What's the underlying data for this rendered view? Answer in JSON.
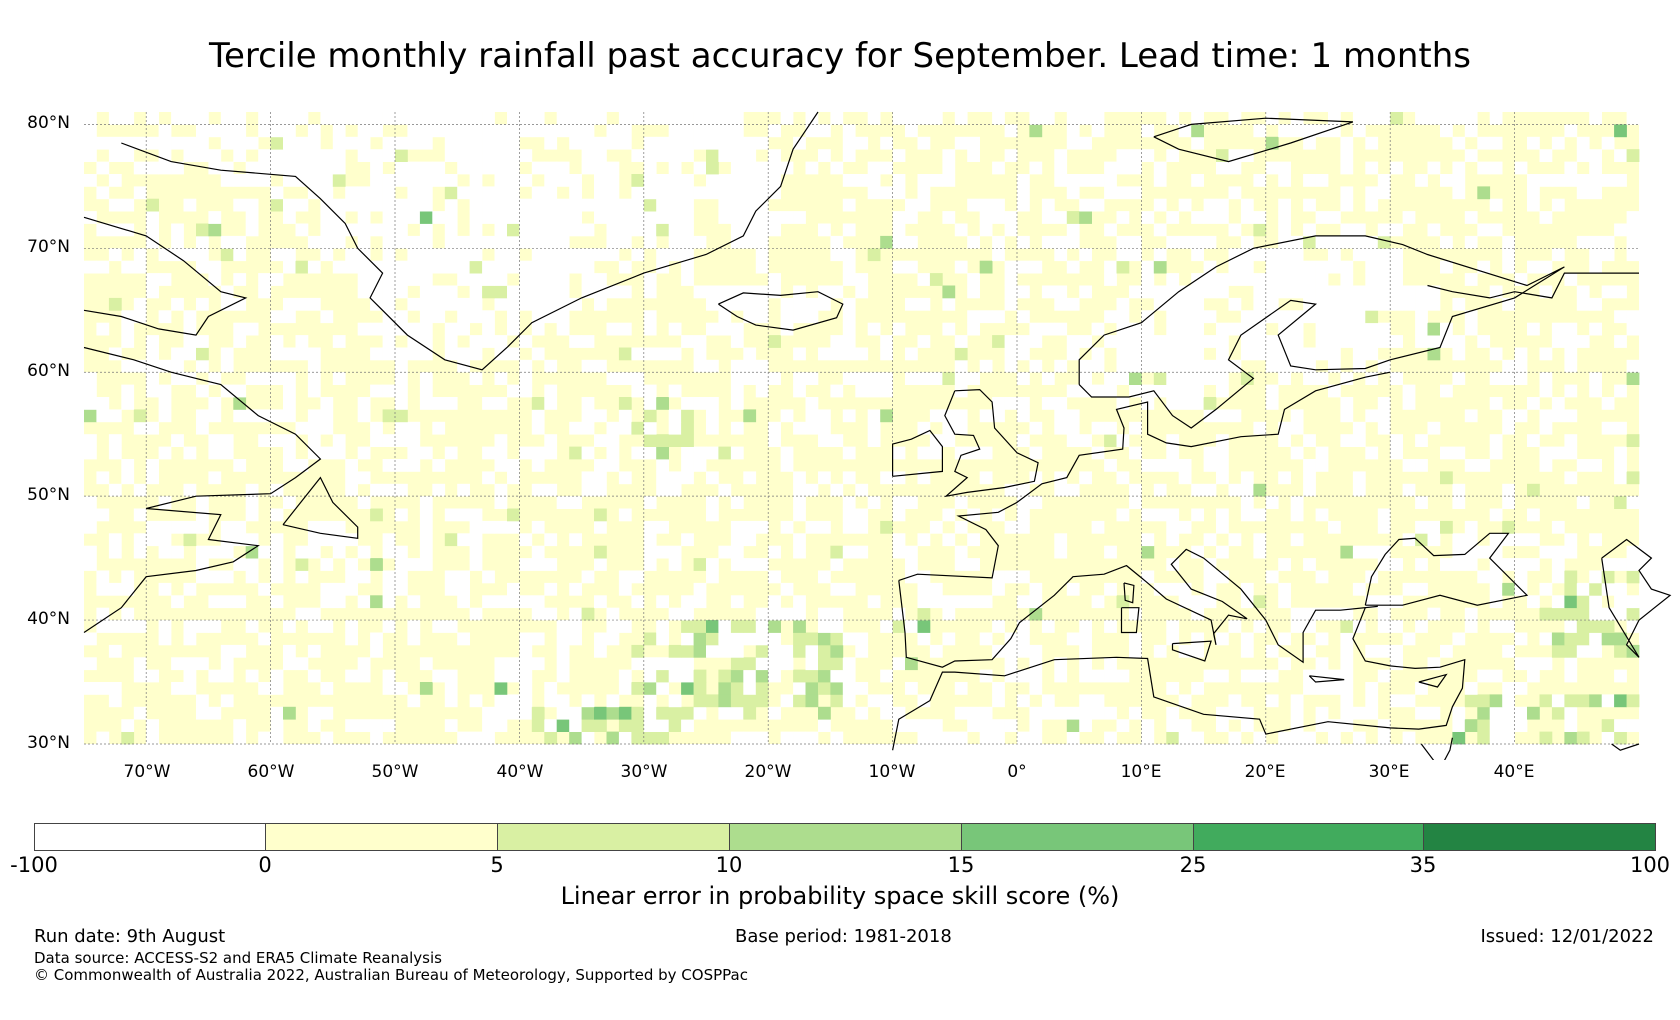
{
  "title": "Tercile monthly rainfall past accuracy for September. Lead time: 1 months",
  "map": {
    "lat_ticks": [
      "80°N",
      "70°N",
      "60°N",
      "50°N",
      "40°N",
      "30°N"
    ],
    "lon_ticks": [
      "70°W",
      "60°W",
      "50°W",
      "40°W",
      "30°W",
      "20°W",
      "10°W",
      "0°",
      "10°E",
      "20°E",
      "30°E",
      "40°E"
    ],
    "extent": {
      "lon_min": -75,
      "lon_max": 50,
      "lat_min": 30,
      "lat_max": 81
    },
    "ocean_land_base_color": "#ffffcc",
    "region_summary": {
      "mostly_negative_areas": [
        "Greenland interior",
        "Iceland",
        "Scandinavia",
        "North Africa interior"
      ],
      "mostly_0_to_5": [
        "North Atlantic",
        "Europe",
        "Mediterranean"
      ],
      "5_to_15_patches": [
        "central subtropical Atlantic near 35N 20W",
        "mid Atlantic near 55N 30W",
        "Caspian region near 40N 48E",
        "Middle East near 32N 40E"
      ]
    }
  },
  "colorbar": {
    "label": "Linear error in probability space skill score (%)",
    "ticks": [
      "-100",
      "0",
      "5",
      "10",
      "15",
      "25",
      "35",
      "100"
    ],
    "colors": [
      "#ffffff",
      "#ffffcc",
      "#d9f0a3",
      "#addd8e",
      "#78c679",
      "#41ab5d",
      "#238443"
    ]
  },
  "footer": {
    "run_date": "Run date: 9th August",
    "base_period": "Base period: 1981-2018",
    "issued": "Issued: 12/01/2022",
    "data_source": "Data source: ACCESS-S2 and ERA5 Climate Reanalysis",
    "copyright": "© Commonwealth of Australia 2022, Australian Bureau of Meteorology, Supported by COSPPac"
  }
}
